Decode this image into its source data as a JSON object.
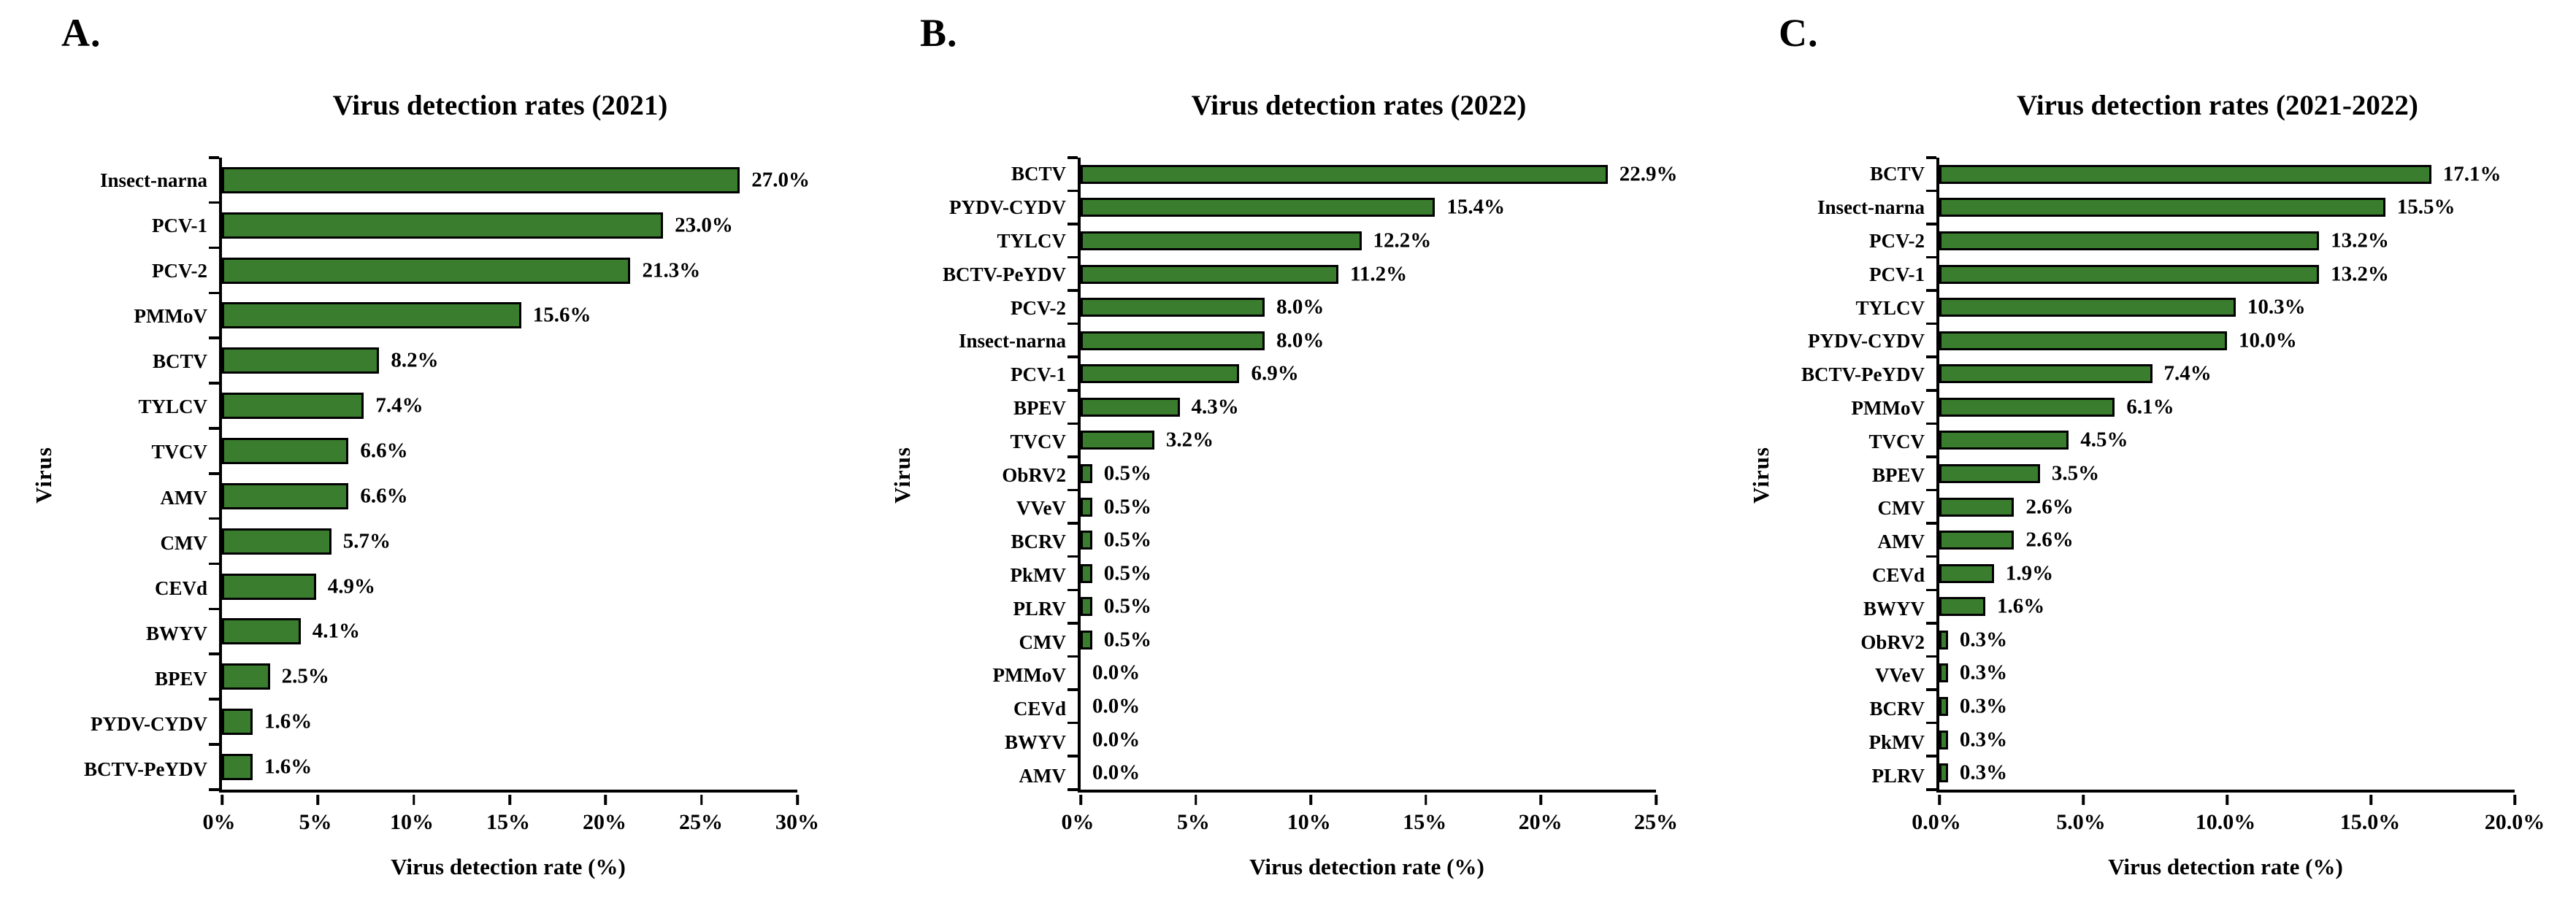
{
  "figure": {
    "background": "#ffffff",
    "bar_color": "#3a7d2e",
    "bar_border_color": "#000000",
    "axis_color": "#000000",
    "text_color": "#000000"
  },
  "chart_data": [
    {
      "panel_letter": "A.",
      "type": "bar",
      "orientation": "horizontal",
      "title": "Virus detection rates (2021)",
      "xlabel": "Virus detection rate (%)",
      "ylabel": "Virus",
      "xlim": [
        0,
        30
      ],
      "grid": false,
      "legend": "none",
      "xtick_values": [
        0,
        5,
        10,
        15,
        20,
        25,
        30
      ],
      "xtick_labels": [
        "0%",
        "5%",
        "10%",
        "15%",
        "20%",
        "25%",
        "30%"
      ],
      "categories": [
        "Insect-narna",
        "PCV-1",
        "PCV-2",
        "PMMoV",
        "BCTV",
        "TYLCV",
        "TVCV",
        "AMV",
        "CMV",
        "CEVd",
        "BWYV",
        "BPEV",
        "PYDV-CYDV",
        "BCTV-PeYDV"
      ],
      "values": [
        27.0,
        23.0,
        21.3,
        15.6,
        8.2,
        7.4,
        6.6,
        6.6,
        5.7,
        4.9,
        4.1,
        2.5,
        1.6,
        1.6
      ],
      "value_labels": [
        "27.0%",
        "23.0%",
        "21.3%",
        "15.6%",
        "8.2%",
        "7.4%",
        "6.6%",
        "6.6%",
        "5.7%",
        "4.9%",
        "4.1%",
        "2.5%",
        "1.6%",
        "1.6%"
      ]
    },
    {
      "panel_letter": "B.",
      "type": "bar",
      "orientation": "horizontal",
      "title": "Virus detection rates (2022)",
      "xlabel": "Virus detection rate (%)",
      "ylabel": "Virus",
      "xlim": [
        0,
        25
      ],
      "grid": false,
      "legend": "none",
      "xtick_values": [
        0,
        5,
        10,
        15,
        20,
        25
      ],
      "xtick_labels": [
        "0%",
        "5%",
        "10%",
        "15%",
        "20%",
        "25%"
      ],
      "categories": [
        "BCTV",
        "PYDV-CYDV",
        "TYLCV",
        "BCTV-PeYDV",
        "PCV-2",
        "Insect-narna",
        "PCV-1",
        "BPEV",
        "TVCV",
        "ObRV2",
        "VVeV",
        "BCRV",
        "PkMV",
        "PLRV",
        "CMV",
        "PMMoV",
        "CEVd",
        "BWYV",
        "AMV"
      ],
      "values": [
        22.9,
        15.4,
        12.2,
        11.2,
        8.0,
        8.0,
        6.9,
        4.3,
        3.2,
        0.5,
        0.5,
        0.5,
        0.5,
        0.5,
        0.5,
        0.0,
        0.0,
        0.0,
        0.0
      ],
      "value_labels": [
        "22.9%",
        "15.4%",
        "12.2%",
        "11.2%",
        "8.0%",
        "8.0%",
        "6.9%",
        "4.3%",
        "3.2%",
        "0.5%",
        "0.5%",
        "0.5%",
        "0.5%",
        "0.5%",
        "0.5%",
        "0.0%",
        "0.0%",
        "0.0%",
        "0.0%"
      ]
    },
    {
      "panel_letter": "C.",
      "type": "bar",
      "orientation": "horizontal",
      "title": "Virus detection rates (2021-2022)",
      "xlabel": "Virus detection rate (%)",
      "ylabel": "Virus",
      "xlim": [
        0,
        20
      ],
      "grid": false,
      "legend": "none",
      "xtick_values": [
        0,
        5,
        10,
        15,
        20
      ],
      "xtick_labels": [
        "0.0%",
        "5.0%",
        "10.0%",
        "15.0%",
        "20.0%"
      ],
      "categories": [
        "BCTV",
        "Insect-narna",
        "PCV-2",
        "PCV-1",
        "TYLCV",
        "PYDV-CYDV",
        "BCTV-PeYDV",
        "PMMoV",
        "TVCV",
        "BPEV",
        "CMV",
        "AMV",
        "CEVd",
        "BWYV",
        "ObRV2",
        "VVeV",
        "BCRV",
        "PkMV",
        "PLRV"
      ],
      "values": [
        17.1,
        15.5,
        13.2,
        13.2,
        10.3,
        10.0,
        7.4,
        6.1,
        4.5,
        3.5,
        2.6,
        2.6,
        1.9,
        1.6,
        0.3,
        0.3,
        0.3,
        0.3,
        0.3
      ],
      "value_labels": [
        "17.1%",
        "15.5%",
        "13.2%",
        "13.2%",
        "10.3%",
        "10.0%",
        "7.4%",
        "6.1%",
        "4.5%",
        "3.5%",
        "2.6%",
        "2.6%",
        "1.9%",
        "1.6%",
        "0.3%",
        "0.3%",
        "0.3%",
        "0.3%",
        "0.3%"
      ]
    }
  ]
}
